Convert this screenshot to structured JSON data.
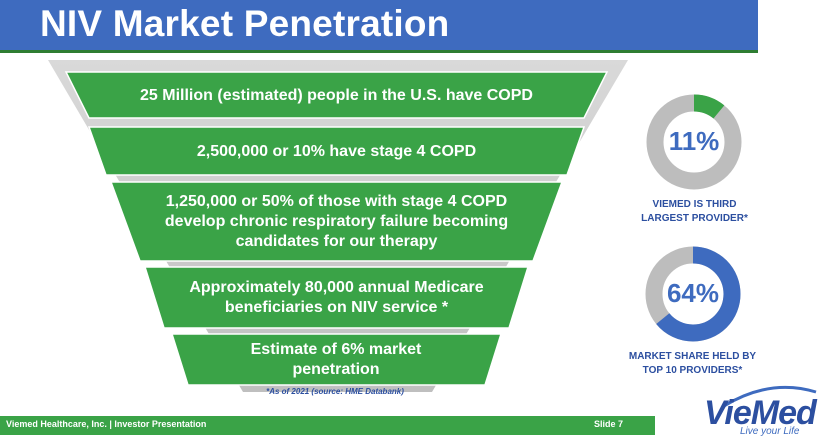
{
  "title": "NIV Market Penetration",
  "funnel": {
    "layers": [
      "25 Million (estimated) people in the U.S. have COPD",
      "2,500,000 or 10% have stage 4 COPD",
      "1,250,000 or 50% of those with stage 4 COPD develop chronic respiratory failure becoming candidates for our therapy",
      "Approximately 80,000 annual Medicare beneficiaries on NIV service *",
      "Estimate of 6% market penetration"
    ],
    "footnote": "*As of 2021 (source: HME Databank)"
  },
  "donuts": [
    {
      "percent_label": "11%",
      "value": 11,
      "caption": "VIEMED IS THIRD LARGEST PROVIDER*",
      "color": "#3aa347",
      "track": "#bdbdbd"
    },
    {
      "percent_label": "64%",
      "value": 64,
      "caption": "MARKET SHARE HELD BY TOP 10 PROVIDERS*",
      "color": "#3e6bbf",
      "track": "#bdbdbd"
    }
  ],
  "footer": {
    "left": "Viemed Healthcare, Inc. | Investor Presentation",
    "right": "Slide 7"
  },
  "logo": {
    "name": "VieMed",
    "tagline": "Live your Life"
  },
  "colors": {
    "title_bg": "#3e6bbf",
    "green": "#3aa347",
    "funnel_frame": "#c8c8c8"
  }
}
